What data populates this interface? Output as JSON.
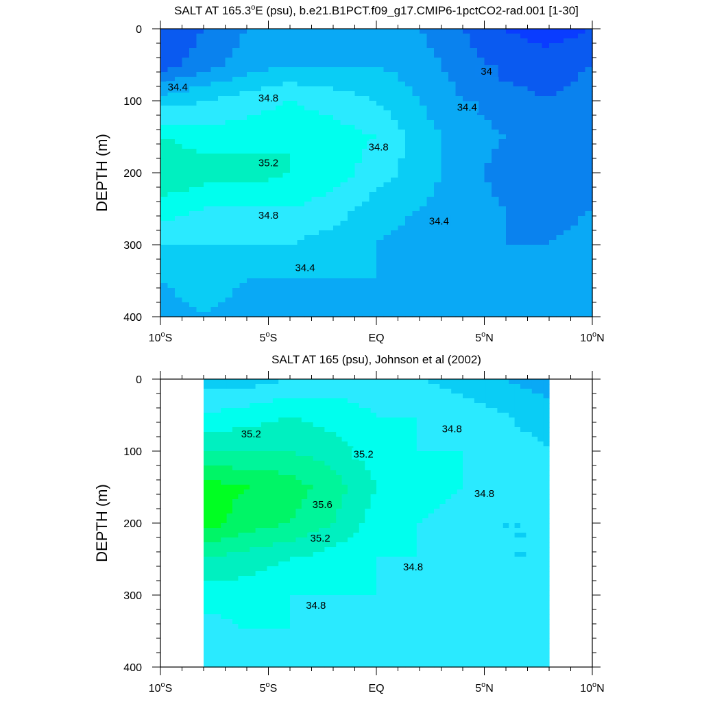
{
  "chart_data": [
    {
      "type": "heatmap",
      "title_main": "SALT AT 165.3",
      "title_deg": "o",
      "title_rest": "E (psu), b.e21.B1PCT.f09_g17.CMIP6-1pctCO2-rad.001 [1-30]",
      "ylabel": "DEPTH (m)",
      "xlabel": "",
      "xlim": [
        -10,
        10
      ],
      "ylim": [
        400,
        0
      ],
      "x_ticks": [
        {
          "num": "10",
          "deg": "o",
          "hem": "S"
        },
        {
          "num": "5",
          "deg": "o",
          "hem": "S"
        },
        {
          "num": "EQ",
          "deg": "",
          "hem": ""
        },
        {
          "num": "5",
          "deg": "o",
          "hem": "N"
        },
        {
          "num": "10",
          "deg": "o",
          "hem": "N"
        }
      ],
      "y_ticks": [
        "0",
        "100",
        "200",
        "300",
        "400"
      ],
      "contour_interval": 0.2,
      "x": [
        -10,
        -8,
        -6,
        -4,
        -2,
        0,
        2,
        4,
        6,
        8,
        10
      ],
      "depth": [
        0,
        50,
        100,
        150,
        200,
        250,
        300,
        350,
        400
      ],
      "values": [
        [
          33.8,
          34.0,
          34.2,
          34.3,
          34.3,
          34.3,
          34.2,
          34.0,
          33.8,
          33.7,
          33.8
        ],
        [
          33.9,
          34.1,
          34.3,
          34.4,
          34.4,
          34.4,
          34.3,
          34.1,
          33.9,
          33.9,
          34.0
        ],
        [
          34.5,
          34.6,
          34.7,
          34.8,
          34.7,
          34.6,
          34.4,
          34.2,
          34.1,
          34.0,
          34.1
        ],
        [
          35.0,
          34.9,
          34.9,
          35.0,
          34.9,
          34.8,
          34.5,
          34.3,
          34.2,
          34.1,
          34.1
        ],
        [
          35.2,
          35.1,
          35.1,
          35.0,
          34.9,
          34.7,
          34.5,
          34.3,
          34.1,
          34.1,
          34.2
        ],
        [
          34.9,
          34.8,
          34.8,
          34.8,
          34.7,
          34.5,
          34.4,
          34.3,
          34.2,
          34.1,
          34.2
        ],
        [
          34.6,
          34.6,
          34.6,
          34.6,
          34.5,
          34.4,
          34.3,
          34.2,
          34.2,
          34.2,
          34.3
        ],
        [
          34.4,
          34.5,
          34.4,
          34.4,
          34.4,
          34.4,
          34.3,
          34.3,
          34.3,
          34.3,
          34.3
        ],
        [
          34.3,
          34.4,
          34.3,
          34.3,
          34.3,
          34.3,
          34.3,
          34.3,
          34.3,
          34.3,
          34.3
        ]
      ],
      "contour_labels": [
        {
          "text": "34.4",
          "x": -9.2,
          "depth": 82
        },
        {
          "text": "34.8",
          "x": -5.0,
          "depth": 97
        },
        {
          "text": "35.2",
          "x": -5.0,
          "depth": 187
        },
        {
          "text": "34.8",
          "x": 0.1,
          "depth": 165
        },
        {
          "text": "34.8",
          "x": -5.0,
          "depth": 260
        },
        {
          "text": "34.4",
          "x": -3.3,
          "depth": 333
        },
        {
          "text": "34.4",
          "x": 2.9,
          "depth": 268
        },
        {
          "text": "34.4",
          "x": 4.2,
          "depth": 110
        },
        {
          "text": "34",
          "x": 5.1,
          "depth": 60
        }
      ]
    },
    {
      "type": "heatmap",
      "title_main": "SALT AT 165 (psu), Johnson et al (2002)",
      "title_deg": "",
      "title_rest": "",
      "ylabel": "DEPTH (m)",
      "xlabel": "",
      "xlim": [
        -10,
        10
      ],
      "ylim": [
        400,
        0
      ],
      "x_ticks": [
        {
          "num": "10",
          "deg": "o",
          "hem": "S"
        },
        {
          "num": "5",
          "deg": "o",
          "hem": "S"
        },
        {
          "num": "EQ",
          "deg": "",
          "hem": ""
        },
        {
          "num": "5",
          "deg": "o",
          "hem": "N"
        },
        {
          "num": "10",
          "deg": "o",
          "hem": "N"
        }
      ],
      "y_ticks": [
        "0",
        "100",
        "200",
        "300",
        "400"
      ],
      "contour_interval": 0.2,
      "data_range_x": [
        -8,
        8
      ],
      "x": [
        -8,
        -6,
        -4,
        -2,
        0,
        2,
        4,
        6,
        8
      ],
      "depth": [
        0,
        50,
        100,
        150,
        200,
        250,
        300,
        350,
        400
      ],
      "values": [
        [
          34.5,
          34.5,
          34.6,
          34.7,
          34.7,
          34.6,
          34.5,
          34.4,
          34.3
        ],
        [
          34.8,
          34.9,
          35.0,
          34.9,
          34.8,
          34.8,
          34.7,
          34.6,
          34.5
        ],
        [
          35.2,
          35.2,
          35.2,
          35.1,
          34.9,
          34.8,
          34.8,
          34.7,
          34.6
        ],
        [
          35.7,
          35.6,
          35.5,
          35.3,
          35.0,
          34.9,
          34.8,
          34.7,
          34.6
        ],
        [
          35.7,
          35.5,
          35.4,
          35.2,
          34.9,
          34.8,
          34.7,
          34.6,
          34.6
        ],
        [
          35.2,
          35.1,
          35.0,
          34.9,
          34.8,
          34.8,
          34.7,
          34.6,
          34.6
        ],
        [
          34.9,
          34.9,
          34.8,
          34.8,
          34.8,
          34.7,
          34.7,
          34.7,
          34.6
        ],
        [
          34.7,
          34.8,
          34.8,
          34.7,
          34.7,
          34.7,
          34.7,
          34.7,
          34.7
        ],
        [
          34.7,
          34.7,
          34.7,
          34.7,
          34.7,
          34.7,
          34.7,
          34.7,
          34.7
        ]
      ],
      "contour_labels": [
        {
          "text": "35.2",
          "x": -5.8,
          "depth": 77
        },
        {
          "text": "35.2",
          "x": -0.6,
          "depth": 105
        },
        {
          "text": "35.6",
          "x": -2.5,
          "depth": 175
        },
        {
          "text": "35.2",
          "x": -2.6,
          "depth": 222
        },
        {
          "text": "34.8",
          "x": 3.5,
          "depth": 70
        },
        {
          "text": "34.8",
          "x": 5.0,
          "depth": 160
        },
        {
          "text": "34.8",
          "x": 1.7,
          "depth": 262
        },
        {
          "text": "34.8",
          "x": -2.8,
          "depth": 315
        }
      ]
    }
  ]
}
